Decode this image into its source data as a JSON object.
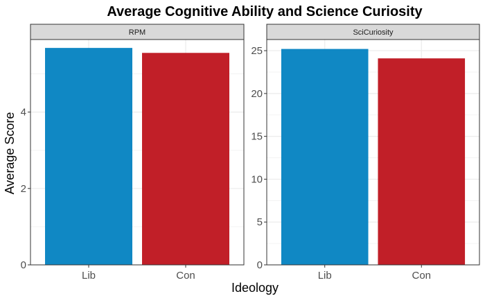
{
  "chart_data": {
    "type": "bar",
    "title": "Average Cognitive Ability and Science Curiosity",
    "xlabel": "Ideology",
    "ylabel": "Average Score",
    "categories": [
      "Lib",
      "Con"
    ],
    "bar_colors": [
      "#1088C4",
      "#C11F28"
    ],
    "grid": true,
    "facets": [
      {
        "name": "RPM",
        "values": [
          5.68,
          5.55
        ],
        "ylim": [
          0,
          5.9
        ],
        "yticks": [
          0,
          2,
          4
        ]
      },
      {
        "name": "SciCuriosity",
        "values": [
          25.2,
          24.1
        ],
        "ylim": [
          0,
          26.3
        ],
        "yticks": [
          0,
          5,
          10,
          15,
          20,
          25
        ]
      }
    ]
  }
}
